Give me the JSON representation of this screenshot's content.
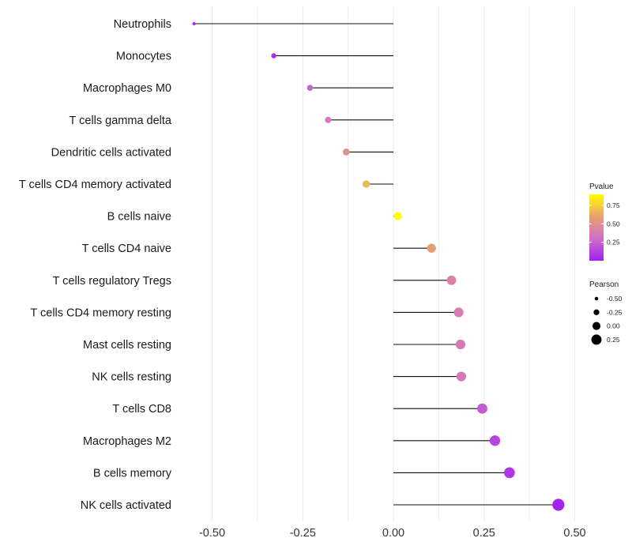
{
  "chart_data": {
    "type": "lollipop",
    "xlim": [
      -0.6,
      0.55
    ],
    "x_ticks": [
      -0.5,
      -0.25,
      0.0,
      0.25,
      0.5
    ],
    "x_tick_labels": [
      "-0.50",
      "-0.25",
      "0.00",
      "0.25",
      "0.50"
    ],
    "x_minor_grid": [
      -0.375,
      -0.125,
      0.125,
      0.375
    ],
    "points": [
      {
        "label": "Neutrophils",
        "pearson": -0.55,
        "pvalue": 0.04
      },
      {
        "label": "Monocytes",
        "pearson": -0.33,
        "pvalue": 0.06
      },
      {
        "label": "Macrophages M0",
        "pearson": -0.23,
        "pvalue": 0.25
      },
      {
        "label": "T cells gamma delta",
        "pearson": -0.18,
        "pvalue": 0.37
      },
      {
        "label": "Dendritic cells activated",
        "pearson": -0.13,
        "pvalue": 0.5
      },
      {
        "label": "T cells CD4 memory activated",
        "pearson": -0.075,
        "pvalue": 0.68
      },
      {
        "label": "B cells naive",
        "pearson": 0.012,
        "pvalue": 0.95
      },
      {
        "label": "T cells CD4 naive",
        "pearson": 0.105,
        "pvalue": 0.58
      },
      {
        "label": "T cells regulatory  Tregs ",
        "pearson": 0.16,
        "pvalue": 0.42
      },
      {
        "label": "T cells CD4 memory resting",
        "pearson": 0.18,
        "pvalue": 0.37
      },
      {
        "label": "Mast cells resting",
        "pearson": 0.185,
        "pvalue": 0.36
      },
      {
        "label": "NK cells resting",
        "pearson": 0.187,
        "pvalue": 0.35
      },
      {
        "label": "T cells CD8",
        "pearson": 0.245,
        "pvalue": 0.22
      },
      {
        "label": "Macrophages M2",
        "pearson": 0.28,
        "pvalue": 0.14
      },
      {
        "label": "B cells memory",
        "pearson": 0.32,
        "pvalue": 0.09
      },
      {
        "label": "NK cells activated",
        "pearson": 0.455,
        "pvalue": 0.02
      }
    ],
    "legend_pvalue": {
      "title": "Pvalue",
      "range": [
        0.0,
        0.9
      ],
      "ticks": [
        0.25,
        0.5,
        0.75
      ],
      "tick_labels": [
        "0.25",
        "0.50",
        "0.75"
      ],
      "colors": [
        "#a020f0",
        "#d070c8",
        "#e8a070",
        "#ffff00"
      ]
    },
    "legend_pearson": {
      "title": "Pearson",
      "values": [
        -0.5,
        -0.25,
        0.0,
        0.25
      ],
      "labels": [
        "-0.50",
        "-0.25",
        "0.00",
        "0.25"
      ]
    },
    "colors": {
      "segment": "#111111",
      "grid": "#ebebeb",
      "legend_point": "#000000"
    }
  }
}
